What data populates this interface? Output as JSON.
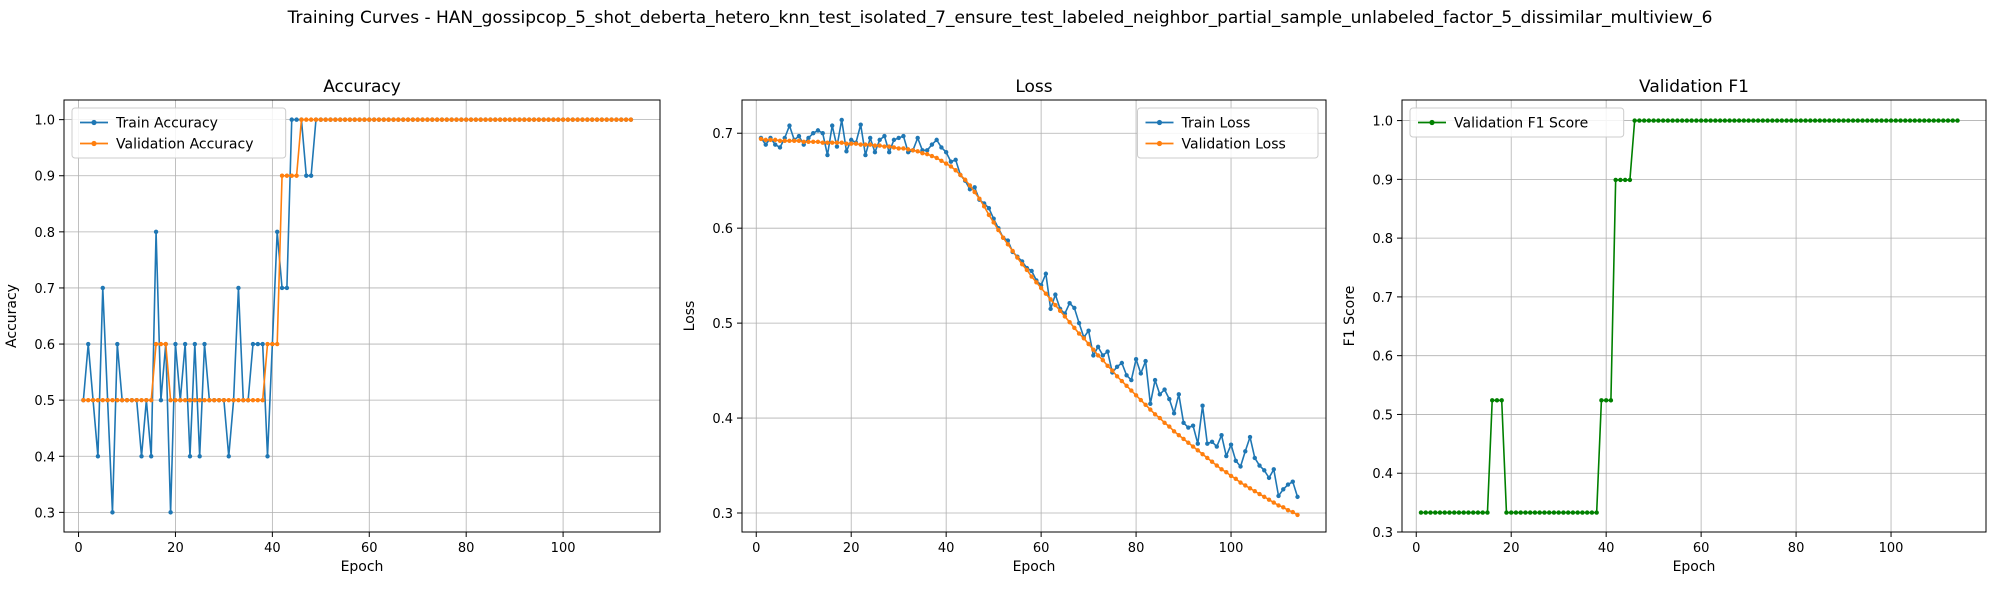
{
  "figure": {
    "suptitle": "Training Curves - HAN_gossipcop_5_shot_deberta_hetero_knn_test_isolated_7_ensure_test_labeled_neighbor_partial_sample_unlabeled_factor_5_dissimilar_multiview_6"
  },
  "colors": {
    "blue": "#1f77b4",
    "orange": "#ff7f0e",
    "green": "#008000",
    "grid": "#b0b0b0"
  },
  "chart_data": [
    {
      "type": "line",
      "title": "Accuracy",
      "xlabel": "Epoch",
      "ylabel": "Accuracy",
      "xlim": [
        -3,
        120
      ],
      "ylim": [
        0.265,
        1.035
      ],
      "xticks": [
        0,
        20,
        40,
        60,
        80,
        100
      ],
      "yticks": [
        0.3,
        0.4,
        0.5,
        0.6,
        0.7,
        0.8,
        0.9,
        1.0
      ],
      "grid": true,
      "legend_position": "upper left",
      "x": [
        1,
        2,
        3,
        4,
        5,
        6,
        7,
        8,
        9,
        10,
        11,
        12,
        13,
        14,
        15,
        16,
        17,
        18,
        19,
        20,
        21,
        22,
        23,
        24,
        25,
        26,
        27,
        28,
        29,
        30,
        31,
        32,
        33,
        34,
        35,
        36,
        37,
        38,
        39,
        40,
        41,
        42,
        43,
        44,
        45,
        46,
        47,
        48,
        49,
        50,
        51,
        52,
        53,
        54,
        55,
        56,
        57,
        58,
        59,
        60,
        61,
        62,
        63,
        64,
        65,
        66,
        67,
        68,
        69,
        70,
        71,
        72,
        73,
        74,
        75,
        76,
        77,
        78,
        79,
        80,
        81,
        82,
        83,
        84,
        85,
        86,
        87,
        88,
        89,
        90,
        91,
        92,
        93,
        94,
        95,
        96,
        97,
        98,
        99,
        100,
        101,
        102,
        103,
        104,
        105,
        106,
        107,
        108,
        109,
        110,
        111,
        112,
        113,
        114
      ],
      "series": [
        {
          "name": "Train Accuracy",
          "color": "#1f77b4",
          "values": [
            0.5,
            0.6,
            0.5,
            0.4,
            0.7,
            0.5,
            0.3,
            0.6,
            0.5,
            0.5,
            0.5,
            0.5,
            0.4,
            0.5,
            0.4,
            0.8,
            0.5,
            0.6,
            0.3,
            0.6,
            0.5,
            0.6,
            0.4,
            0.6,
            0.4,
            0.6,
            0.5,
            0.5,
            0.5,
            0.5,
            0.4,
            0.5,
            0.7,
            0.5,
            0.5,
            0.6,
            0.6,
            0.6,
            0.4,
            0.6,
            0.8,
            0.7,
            0.7,
            1.0,
            1.0,
            1.0,
            0.9,
            0.9,
            1.0,
            1.0,
            1.0,
            1.0,
            1.0,
            1.0,
            1.0,
            1.0,
            1.0,
            1.0,
            1.0,
            1.0,
            1.0,
            1.0,
            1.0,
            1.0,
            1.0,
            1.0,
            1.0,
            1.0,
            1.0,
            1.0,
            1.0,
            1.0,
            1.0,
            1.0,
            1.0,
            1.0,
            1.0,
            1.0,
            1.0,
            1.0,
            1.0,
            1.0,
            1.0,
            1.0,
            1.0,
            1.0,
            1.0,
            1.0,
            1.0,
            1.0,
            1.0,
            1.0,
            1.0,
            1.0,
            1.0,
            1.0,
            1.0,
            1.0,
            1.0,
            1.0,
            1.0,
            1.0,
            1.0,
            1.0,
            1.0,
            1.0,
            1.0,
            1.0,
            1.0,
            1.0,
            1.0,
            1.0,
            1.0,
            1.0
          ]
        },
        {
          "name": "Validation Accuracy",
          "color": "#ff7f0e",
          "values": [
            0.5,
            0.5,
            0.5,
            0.5,
            0.5,
            0.5,
            0.5,
            0.5,
            0.5,
            0.5,
            0.5,
            0.5,
            0.5,
            0.5,
            0.5,
            0.6,
            0.6,
            0.6,
            0.5,
            0.5,
            0.5,
            0.5,
            0.5,
            0.5,
            0.5,
            0.5,
            0.5,
            0.5,
            0.5,
            0.5,
            0.5,
            0.5,
            0.5,
            0.5,
            0.5,
            0.5,
            0.5,
            0.5,
            0.6,
            0.6,
            0.6,
            0.9,
            0.9,
            0.9,
            0.9,
            1.0,
            1.0,
            1.0,
            1.0,
            1.0,
            1.0,
            1.0,
            1.0,
            1.0,
            1.0,
            1.0,
            1.0,
            1.0,
            1.0,
            1.0,
            1.0,
            1.0,
            1.0,
            1.0,
            1.0,
            1.0,
            1.0,
            1.0,
            1.0,
            1.0,
            1.0,
            1.0,
            1.0,
            1.0,
            1.0,
            1.0,
            1.0,
            1.0,
            1.0,
            1.0,
            1.0,
            1.0,
            1.0,
            1.0,
            1.0,
            1.0,
            1.0,
            1.0,
            1.0,
            1.0,
            1.0,
            1.0,
            1.0,
            1.0,
            1.0,
            1.0,
            1.0,
            1.0,
            1.0,
            1.0,
            1.0,
            1.0,
            1.0,
            1.0,
            1.0,
            1.0,
            1.0,
            1.0,
            1.0,
            1.0,
            1.0,
            1.0,
            1.0,
            1.0
          ]
        }
      ]
    },
    {
      "type": "line",
      "title": "Loss",
      "xlabel": "Epoch",
      "ylabel": "Loss",
      "xlim": [
        -3,
        120
      ],
      "ylim": [
        0.28,
        0.735
      ],
      "xticks": [
        0,
        20,
        40,
        60,
        80,
        100
      ],
      "yticks": [
        0.3,
        0.4,
        0.5,
        0.6,
        0.7
      ],
      "grid": true,
      "legend_position": "upper right",
      "x": [
        1,
        2,
        3,
        4,
        5,
        6,
        7,
        8,
        9,
        10,
        11,
        12,
        13,
        14,
        15,
        16,
        17,
        18,
        19,
        20,
        21,
        22,
        23,
        24,
        25,
        26,
        27,
        28,
        29,
        30,
        31,
        32,
        33,
        34,
        35,
        36,
        37,
        38,
        39,
        40,
        41,
        42,
        43,
        44,
        45,
        46,
        47,
        48,
        49,
        50,
        51,
        52,
        53,
        54,
        55,
        56,
        57,
        58,
        59,
        60,
        61,
        62,
        63,
        64,
        65,
        66,
        67,
        68,
        69,
        70,
        71,
        72,
        73,
        74,
        75,
        76,
        77,
        78,
        79,
        80,
        81,
        82,
        83,
        84,
        85,
        86,
        87,
        88,
        89,
        90,
        91,
        92,
        93,
        94,
        95,
        96,
        97,
        98,
        99,
        100,
        101,
        102,
        103,
        104,
        105,
        106,
        107,
        108,
        109,
        110,
        111,
        112,
        113,
        114
      ],
      "series": [
        {
          "name": "Train Loss",
          "color": "#1f77b4",
          "values": [
            0.695,
            0.688,
            0.695,
            0.688,
            0.685,
            0.695,
            0.708,
            0.693,
            0.697,
            0.688,
            0.695,
            0.7,
            0.703,
            0.7,
            0.677,
            0.708,
            0.686,
            0.714,
            0.681,
            0.693,
            0.69,
            0.709,
            0.677,
            0.695,
            0.68,
            0.693,
            0.697,
            0.68,
            0.693,
            0.695,
            0.697,
            0.68,
            0.682,
            0.695,
            0.682,
            0.682,
            0.688,
            0.693,
            0.685,
            0.68,
            0.67,
            0.672,
            0.656,
            0.65,
            0.641,
            0.643,
            0.63,
            0.626,
            0.621,
            0.61,
            0.6,
            0.59,
            0.587,
            0.575,
            0.57,
            0.565,
            0.558,
            0.555,
            0.545,
            0.54,
            0.552,
            0.515,
            0.53,
            0.515,
            0.51,
            0.521,
            0.516,
            0.5,
            0.485,
            0.492,
            0.466,
            0.475,
            0.466,
            0.47,
            0.448,
            0.454,
            0.458,
            0.445,
            0.44,
            0.462,
            0.447,
            0.46,
            0.415,
            0.44,
            0.425,
            0.43,
            0.42,
            0.405,
            0.425,
            0.395,
            0.39,
            0.392,
            0.373,
            0.413,
            0.373,
            0.375,
            0.37,
            0.382,
            0.36,
            0.372,
            0.355,
            0.349,
            0.365,
            0.38,
            0.358,
            0.35,
            0.345,
            0.337,
            0.346,
            0.318,
            0.325,
            0.33,
            0.333,
            0.317
          ]
        },
        {
          "name": "Validation Loss",
          "color": "#ff7f0e",
          "values": [
            0.694,
            0.693,
            0.693,
            0.693,
            0.692,
            0.692,
            0.692,
            0.692,
            0.692,
            0.691,
            0.691,
            0.691,
            0.691,
            0.69,
            0.69,
            0.69,
            0.69,
            0.69,
            0.689,
            0.689,
            0.689,
            0.688,
            0.688,
            0.688,
            0.687,
            0.687,
            0.686,
            0.686,
            0.685,
            0.684,
            0.684,
            0.683,
            0.682,
            0.681,
            0.679,
            0.678,
            0.676,
            0.674,
            0.671,
            0.668,
            0.665,
            0.661,
            0.656,
            0.651,
            0.645,
            0.638,
            0.631,
            0.623,
            0.614,
            0.606,
            0.598,
            0.59,
            0.583,
            0.576,
            0.569,
            0.562,
            0.556,
            0.549,
            0.543,
            0.537,
            0.531,
            0.525,
            0.519,
            0.513,
            0.507,
            0.501,
            0.495,
            0.489,
            0.484,
            0.478,
            0.472,
            0.466,
            0.461,
            0.455,
            0.45,
            0.444,
            0.439,
            0.434,
            0.429,
            0.424,
            0.419,
            0.414,
            0.409,
            0.404,
            0.4,
            0.395,
            0.391,
            0.386,
            0.382,
            0.378,
            0.374,
            0.37,
            0.366,
            0.362,
            0.358,
            0.354,
            0.35,
            0.346,
            0.343,
            0.339,
            0.336,
            0.332,
            0.329,
            0.326,
            0.323,
            0.32,
            0.317,
            0.314,
            0.311,
            0.308,
            0.306,
            0.303,
            0.301,
            0.298
          ]
        }
      ]
    },
    {
      "type": "line",
      "title": "Validation F1",
      "xlabel": "Epoch",
      "ylabel": "F1 Score",
      "xlim": [
        -3,
        120
      ],
      "ylim": [
        0.3,
        1.035
      ],
      "xticks": [
        0,
        20,
        40,
        60,
        80,
        100
      ],
      "yticks": [
        0.3,
        0.4,
        0.5,
        0.6,
        0.7,
        0.8,
        0.9,
        1.0
      ],
      "grid": true,
      "legend_position": "upper left",
      "x": [
        1,
        2,
        3,
        4,
        5,
        6,
        7,
        8,
        9,
        10,
        11,
        12,
        13,
        14,
        15,
        16,
        17,
        18,
        19,
        20,
        21,
        22,
        23,
        24,
        25,
        26,
        27,
        28,
        29,
        30,
        31,
        32,
        33,
        34,
        35,
        36,
        37,
        38,
        39,
        40,
        41,
        42,
        43,
        44,
        45,
        46,
        47,
        48,
        49,
        50,
        51,
        52,
        53,
        54,
        55,
        56,
        57,
        58,
        59,
        60,
        61,
        62,
        63,
        64,
        65,
        66,
        67,
        68,
        69,
        70,
        71,
        72,
        73,
        74,
        75,
        76,
        77,
        78,
        79,
        80,
        81,
        82,
        83,
        84,
        85,
        86,
        87,
        88,
        89,
        90,
        91,
        92,
        93,
        94,
        95,
        96,
        97,
        98,
        99,
        100,
        101,
        102,
        103,
        104,
        105,
        106,
        107,
        108,
        109,
        110,
        111,
        112,
        113,
        114
      ],
      "series": [
        {
          "name": "Validation F1 Score",
          "color": "#008000",
          "values": [
            0.333,
            0.333,
            0.333,
            0.333,
            0.333,
            0.333,
            0.333,
            0.333,
            0.333,
            0.333,
            0.333,
            0.333,
            0.333,
            0.333,
            0.333,
            0.524,
            0.524,
            0.524,
            0.333,
            0.333,
            0.333,
            0.333,
            0.333,
            0.333,
            0.333,
            0.333,
            0.333,
            0.333,
            0.333,
            0.333,
            0.333,
            0.333,
            0.333,
            0.333,
            0.333,
            0.333,
            0.333,
            0.333,
            0.524,
            0.524,
            0.524,
            0.899,
            0.899,
            0.899,
            0.899,
            1.0,
            1.0,
            1.0,
            1.0,
            1.0,
            1.0,
            1.0,
            1.0,
            1.0,
            1.0,
            1.0,
            1.0,
            1.0,
            1.0,
            1.0,
            1.0,
            1.0,
            1.0,
            1.0,
            1.0,
            1.0,
            1.0,
            1.0,
            1.0,
            1.0,
            1.0,
            1.0,
            1.0,
            1.0,
            1.0,
            1.0,
            1.0,
            1.0,
            1.0,
            1.0,
            1.0,
            1.0,
            1.0,
            1.0,
            1.0,
            1.0,
            1.0,
            1.0,
            1.0,
            1.0,
            1.0,
            1.0,
            1.0,
            1.0,
            1.0,
            1.0,
            1.0,
            1.0,
            1.0,
            1.0,
            1.0,
            1.0,
            1.0,
            1.0,
            1.0,
            1.0,
            1.0,
            1.0,
            1.0,
            1.0,
            1.0,
            1.0,
            1.0,
            1.0
          ]
        }
      ]
    }
  ]
}
